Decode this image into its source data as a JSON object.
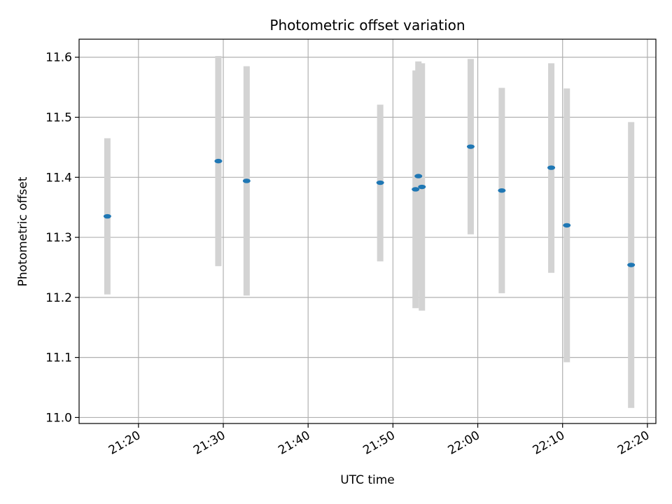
{
  "chart_data": {
    "type": "scatter",
    "title": "Photometric offset variation",
    "xlabel": "UTC time",
    "ylabel": "Photometric offset",
    "x_is_time": true,
    "xlim": [
      "21:13",
      "22:21"
    ],
    "ylim": [
      10.99,
      11.63
    ],
    "xticks": [
      "21:20",
      "21:30",
      "21:40",
      "21:50",
      "22:00",
      "22:10",
      "22:20"
    ],
    "yticks": [
      "11.0",
      "11.1",
      "11.2",
      "11.3",
      "11.4",
      "11.5",
      "11.6"
    ],
    "grid": true,
    "colors": {
      "marker": "#1f77b4",
      "errorbar": "#d3d3d3",
      "grid": "#b0b0b0",
      "axes": "#000000"
    },
    "points": [
      {
        "time": "21:16:20",
        "value": 11.335,
        "low": 11.205,
        "high": 11.465
      },
      {
        "time": "21:29:25",
        "value": 11.427,
        "low": 11.252,
        "high": 11.602
      },
      {
        "time": "21:32:45",
        "value": 11.394,
        "low": 11.203,
        "high": 11.585
      },
      {
        "time": "21:48:30",
        "value": 11.391,
        "low": 11.26,
        "high": 11.521
      },
      {
        "time": "21:52:40",
        "value": 11.38,
        "low": 11.182,
        "high": 11.578
      },
      {
        "time": "21:53:00",
        "value": 11.402,
        "low": 11.212,
        "high": 11.593
      },
      {
        "time": "21:53:25",
        "value": 11.384,
        "low": 11.178,
        "high": 11.59
      },
      {
        "time": "21:59:10",
        "value": 11.451,
        "low": 11.305,
        "high": 11.597
      },
      {
        "time": "22:02:50",
        "value": 11.378,
        "low": 11.207,
        "high": 11.549
      },
      {
        "time": "22:08:40",
        "value": 11.416,
        "low": 11.241,
        "high": 11.59
      },
      {
        "time": "22:10:30",
        "value": 11.32,
        "low": 11.092,
        "high": 11.548
      },
      {
        "time": "22:18:05",
        "value": 11.254,
        "low": 11.016,
        "high": 11.492
      }
    ]
  }
}
